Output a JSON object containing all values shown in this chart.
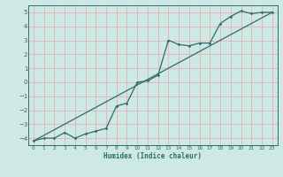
{
  "xlabel": "Humidex (Indice chaleur)",
  "bg_color": "#cde8e5",
  "grid_color": "#e8b0b0",
  "line_color": "#2d6e63",
  "xlim": [
    -0.5,
    23.5
  ],
  "ylim": [
    -4.5,
    5.5
  ],
  "yticks": [
    -4,
    -3,
    -2,
    -1,
    0,
    1,
    2,
    3,
    4,
    5
  ],
  "xticks": [
    0,
    1,
    2,
    3,
    4,
    5,
    6,
    7,
    8,
    9,
    10,
    11,
    12,
    13,
    14,
    15,
    16,
    17,
    18,
    19,
    20,
    21,
    22,
    23
  ],
  "data_x": [
    0,
    1,
    2,
    3,
    4,
    5,
    6,
    7,
    8,
    9,
    10,
    11,
    12,
    13,
    14,
    15,
    16,
    17,
    18,
    19,
    20,
    21,
    22,
    23
  ],
  "data_y": [
    -4.2,
    -4.0,
    -4.0,
    -3.6,
    -4.0,
    -3.7,
    -3.5,
    -3.3,
    -1.7,
    -1.5,
    0.0,
    0.1,
    0.5,
    3.0,
    2.7,
    2.6,
    2.8,
    2.8,
    4.2,
    4.7,
    5.1,
    4.9,
    5.0,
    5.0
  ],
  "trend_x": [
    0,
    23
  ],
  "trend_y": [
    -4.2,
    5.0
  ]
}
